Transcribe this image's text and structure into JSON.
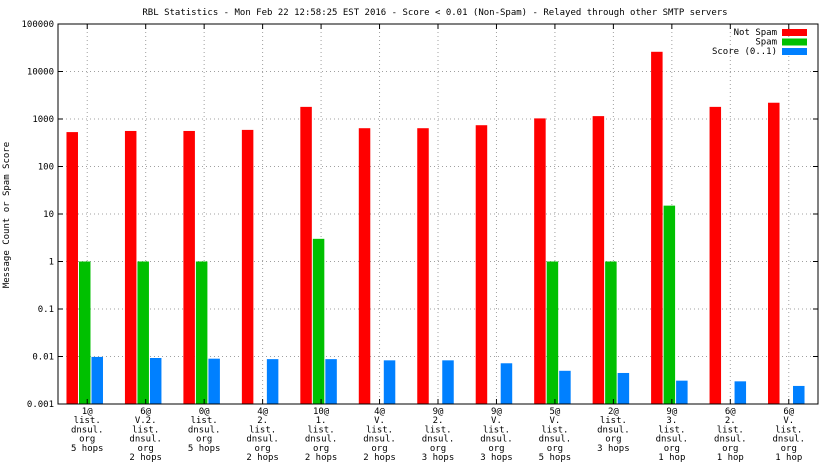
{
  "chart_data": {
    "type": "bar",
    "title": "RBL Statistics - Mon Feb 22 12:58:25 EST 2016 - Score < 0.01 (Non-Spam) - Relayed through other SMTP servers",
    "ylabel": "Message Count or Spam Score",
    "xlabel": "",
    "y_scale": "log",
    "ylim": [
      0.001,
      100000
    ],
    "yticks": [
      {
        "value": 0.001,
        "label": "0.001"
      },
      {
        "value": 0.01,
        "label": "0.01"
      },
      {
        "value": 0.1,
        "label": "0.1"
      },
      {
        "value": 1,
        "label": "1"
      },
      {
        "value": 10,
        "label": "10"
      },
      {
        "value": 100,
        "label": "100"
      },
      {
        "value": 1000,
        "label": "1000"
      },
      {
        "value": 10000,
        "label": "10000"
      },
      {
        "value": 100000,
        "label": "100000"
      }
    ],
    "grid": true,
    "legend_position": "top-right",
    "categories": [
      [
        "1@",
        "list.",
        "dnsul.",
        "org",
        "5 hops"
      ],
      [
        "6@",
        "V.2.",
        "list.",
        "dnsul.",
        "org",
        "2 hops"
      ],
      [
        "0@",
        "list.",
        "dnsul.",
        "org",
        "5 hops"
      ],
      [
        "4@",
        "2.",
        "list.",
        "dnsul.",
        "org",
        "2 hops"
      ],
      [
        "10@",
        "1.",
        "list.",
        "dnsul.",
        "org",
        "2 hops"
      ],
      [
        "4@",
        "V.",
        "list.",
        "dnsul.",
        "org",
        "2 hops"
      ],
      [
        "9@",
        "2.",
        "list.",
        "dnsul.",
        "org",
        "3 hops"
      ],
      [
        "9@",
        "V.",
        "list.",
        "dnsul.",
        "org",
        "3 hops"
      ],
      [
        "5@",
        "V.",
        "list.",
        "dnsul.",
        "org",
        "5 hops"
      ],
      [
        "2@",
        "list.",
        "dnsul.",
        "org",
        "3 hops"
      ],
      [
        "9@",
        "3.",
        "list.",
        "dnsul.",
        "org",
        "1 hop"
      ],
      [
        "6@",
        "2.",
        "list.",
        "dnsul.",
        "org",
        "1 hop"
      ],
      [
        "6@",
        "V.",
        "list.",
        "dnsul.",
        "org",
        "1 hop"
      ]
    ],
    "series": [
      {
        "name": "Not Spam",
        "color": "#ff0000",
        "values": [
          530,
          560,
          560,
          590,
          1800,
          640,
          640,
          740,
          1030,
          1150,
          26000,
          1800,
          2200
        ]
      },
      {
        "name": "Spam",
        "color": "#00c000",
        "values": [
          1,
          1,
          1,
          null,
          3,
          null,
          null,
          null,
          1,
          1,
          15,
          null,
          null
        ]
      },
      {
        "name": "Score (0..1)",
        "color": "#0080ff",
        "values": [
          0.0098,
          0.0093,
          0.009,
          0.0088,
          0.0088,
          0.0083,
          0.0083,
          0.0072,
          0.005,
          0.0045,
          0.0031,
          0.003,
          0.0024
        ]
      }
    ]
  }
}
